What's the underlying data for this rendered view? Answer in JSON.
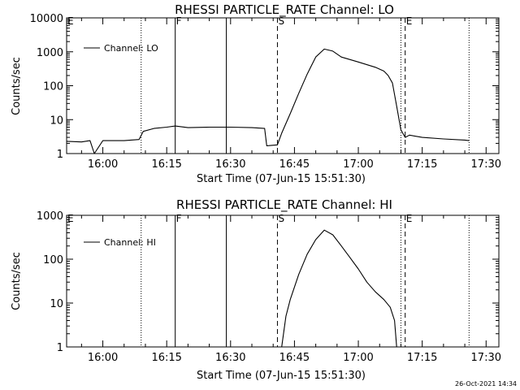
{
  "chart_data": [
    {
      "type": "line",
      "title": "RHESSI PARTICLE_RATE Channel: LO",
      "xlabel": "Start Time (07-Jun-15 15:51:30)",
      "ylabel": "Counts/sec",
      "y_scale": "log",
      "ylim": [
        1,
        10000
      ],
      "xlim": [
        "15:51:30",
        "17:33:00"
      ],
      "x_ticks": [
        "16:00",
        "16:15",
        "16:30",
        "16:45",
        "17:00",
        "17:15",
        "17:30"
      ],
      "y_ticks": [
        "1",
        "10",
        "100",
        "1000",
        "10000"
      ],
      "legend": {
        "label": "Channel: LO",
        "placement": "top-left"
      },
      "markers": [
        {
          "label": "E",
          "time": "15:51:30",
          "style": "dotted"
        },
        {
          "label": "",
          "time": "16:09:00",
          "style": "dotted"
        },
        {
          "label": "F",
          "time": "16:17:00",
          "style": "solid"
        },
        {
          "label": "",
          "time": "16:29:00",
          "style": "solid"
        },
        {
          "label": "S",
          "time": "16:41:00",
          "style": "dashed"
        },
        {
          "label": "",
          "time": "17:10:00",
          "style": "dotted"
        },
        {
          "label": "E",
          "time": "17:11:00",
          "style": "dashed"
        },
        {
          "label": "",
          "time": "17:26:00",
          "style": "dotted"
        }
      ],
      "series": [
        {
          "name": "Channel: LO",
          "x": [
            "15:51:30",
            "15:55:00",
            "15:57:00",
            "15:58:00",
            "16:00:00",
            "16:05:00",
            "16:08:30",
            "16:09:30",
            "16:12:00",
            "16:15:00",
            "16:17:00",
            "16:20:00",
            "16:25:00",
            "16:30:00",
            "16:35:00",
            "16:38:00",
            "16:38:30",
            "16:41:00",
            "16:42:00",
            "16:44:00",
            "16:46:00",
            "16:48:00",
            "16:50:00",
            "16:52:00",
            "16:54:00",
            "16:56:00",
            "17:00:00",
            "17:04:00",
            "17:06:00",
            "17:07:00",
            "17:08:00",
            "17:09:00",
            "17:10:00",
            "17:11:00",
            "17:12:00",
            "17:15:00",
            "17:20:00",
            "17:25:00",
            "17:26:00"
          ],
          "y": [
            2.3,
            2.2,
            2.4,
            1,
            2.4,
            2.4,
            2.6,
            4.5,
            5.5,
            6,
            6.5,
            5.8,
            6,
            6,
            5.8,
            5.5,
            1.7,
            1.8,
            4,
            15,
            60,
            220,
            700,
            1200,
            1050,
            700,
            500,
            350,
            270,
            200,
            120,
            25,
            5,
            3,
            3.5,
            3,
            2.7,
            2.5,
            2.4
          ]
        }
      ]
    },
    {
      "type": "line",
      "title": "RHESSI PARTICLE_RATE Channel: HI",
      "xlabel": "Start Time (07-Jun-15 15:51:30)",
      "ylabel": "Counts/sec",
      "y_scale": "log",
      "ylim": [
        1,
        1000
      ],
      "xlim": [
        "15:51:30",
        "17:33:00"
      ],
      "x_ticks": [
        "16:00",
        "16:15",
        "16:30",
        "16:45",
        "17:00",
        "17:15",
        "17:30"
      ],
      "y_ticks": [
        "1",
        "10",
        "100",
        "1000"
      ],
      "legend": {
        "label": "Channel: HI",
        "placement": "top-left"
      },
      "markers": [
        {
          "label": "E",
          "time": "15:51:30",
          "style": "dotted"
        },
        {
          "label": "",
          "time": "16:09:00",
          "style": "dotted"
        },
        {
          "label": "F",
          "time": "16:17:00",
          "style": "solid"
        },
        {
          "label": "",
          "time": "16:29:00",
          "style": "solid"
        },
        {
          "label": "S",
          "time": "16:41:00",
          "style": "dashed"
        },
        {
          "label": "",
          "time": "17:10:00",
          "style": "dotted"
        },
        {
          "label": "E",
          "time": "17:11:00",
          "style": "dashed"
        },
        {
          "label": "",
          "time": "17:26:00",
          "style": "dotted"
        }
      ],
      "series": [
        {
          "name": "Channel: HI",
          "x": [
            "16:42:00",
            "16:43:00",
            "16:44:00",
            "16:46:00",
            "16:48:00",
            "16:50:00",
            "16:52:00",
            "16:54:00",
            "16:56:00",
            "16:58:00",
            "17:00:00",
            "17:02:00",
            "17:04:00",
            "17:06:00",
            "17:07:30",
            "17:08:30",
            "17:09:00"
          ],
          "y": [
            1,
            5,
            12,
            45,
            130,
            280,
            460,
            360,
            200,
            110,
            60,
            30,
            18,
            12,
            8,
            4,
            1
          ]
        }
      ]
    }
  ],
  "timestamp": "26-Oct-2021 14:34"
}
